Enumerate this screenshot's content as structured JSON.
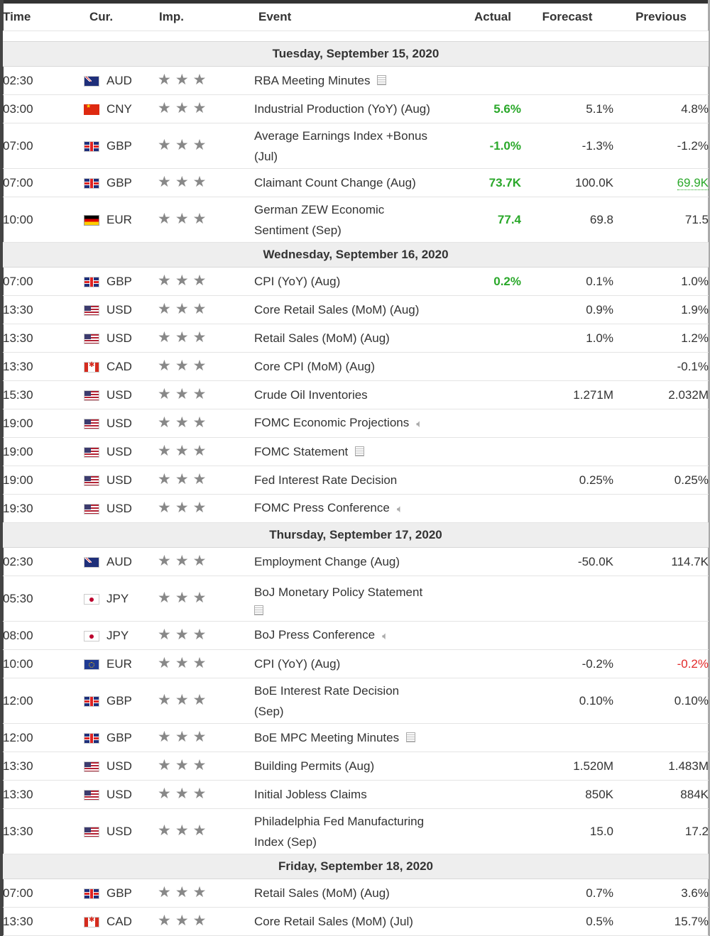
{
  "header": {
    "time": "Time",
    "currency": "Cur.",
    "importance": "Imp.",
    "event": "Event",
    "actual": "Actual",
    "forecast": "Forecast",
    "previous": "Previous"
  },
  "colors": {
    "positive": "#2aa82a",
    "negative": "#e22a2a",
    "day_header_bg": "#eeeeee",
    "star": "#888888"
  },
  "days": [
    {
      "label": "Tuesday, September 15, 2020",
      "events": [
        {
          "time": "02:30",
          "flag": "au",
          "currency": "AUD",
          "importance": 3,
          "event": "RBA Meeting Minutes",
          "icon": "document-icon",
          "actual": "",
          "actual_color": "",
          "forecast": "",
          "previous": "",
          "previous_color": ""
        },
        {
          "time": "03:00",
          "flag": "cn",
          "currency": "CNY",
          "importance": 3,
          "event": "Industrial Production (YoY) (Aug)",
          "icon": "",
          "actual": "5.6%",
          "actual_color": "green",
          "forecast": "5.1%",
          "previous": "4.8%",
          "previous_color": ""
        },
        {
          "time": "07:00",
          "flag": "gb",
          "currency": "GBP",
          "importance": 3,
          "event": "Average Earnings Index +Bonus (Jul)",
          "icon": "",
          "actual": "-1.0%",
          "actual_color": "green",
          "forecast": "-1.3%",
          "previous": "-1.2%",
          "previous_color": ""
        },
        {
          "time": "07:00",
          "flag": "gb",
          "currency": "GBP",
          "importance": 3,
          "event": "Claimant Count Change (Aug)",
          "icon": "",
          "actual": "73.7K",
          "actual_color": "green",
          "forecast": "100.0K",
          "previous": "69.9K",
          "previous_color": "green"
        },
        {
          "time": "10:00",
          "flag": "de",
          "currency": "EUR",
          "importance": 3,
          "event": "German ZEW Economic Sentiment (Sep)",
          "icon": "",
          "actual": "77.4",
          "actual_color": "green",
          "forecast": "69.8",
          "previous": "71.5",
          "previous_color": ""
        }
      ]
    },
    {
      "label": "Wednesday, September 16, 2020",
      "events": [
        {
          "time": "07:00",
          "flag": "gb",
          "currency": "GBP",
          "importance": 3,
          "event": "CPI (YoY) (Aug)",
          "icon": "",
          "actual": "0.2%",
          "actual_color": "green",
          "forecast": "0.1%",
          "previous": "1.0%",
          "previous_color": ""
        },
        {
          "time": "13:30",
          "flag": "us",
          "currency": "USD",
          "importance": 3,
          "event": "Core Retail Sales (MoM) (Aug)",
          "icon": "",
          "actual": "",
          "actual_color": "",
          "forecast": "0.9%",
          "previous": "1.9%",
          "previous_color": ""
        },
        {
          "time": "13:30",
          "flag": "us",
          "currency": "USD",
          "importance": 3,
          "event": "Retail Sales (MoM) (Aug)",
          "icon": "",
          "actual": "",
          "actual_color": "",
          "forecast": "1.0%",
          "previous": "1.2%",
          "previous_color": ""
        },
        {
          "time": "13:30",
          "flag": "ca",
          "currency": "CAD",
          "importance": 3,
          "event": "Core CPI (MoM) (Aug)",
          "icon": "",
          "actual": "",
          "actual_color": "",
          "forecast": "",
          "previous": "-0.1%",
          "previous_color": ""
        },
        {
          "time": "15:30",
          "flag": "us",
          "currency": "USD",
          "importance": 3,
          "event": "Crude Oil Inventories",
          "icon": "",
          "actual": "",
          "actual_color": "",
          "forecast": "1.271M",
          "previous": "2.032M",
          "previous_color": ""
        },
        {
          "time": "19:00",
          "flag": "us",
          "currency": "USD",
          "importance": 3,
          "event": "FOMC Economic Projections",
          "icon": "speaker-icon",
          "actual": "",
          "actual_color": "",
          "forecast": "",
          "previous": "",
          "previous_color": ""
        },
        {
          "time": "19:00",
          "flag": "us",
          "currency": "USD",
          "importance": 3,
          "event": "FOMC Statement",
          "icon": "document-icon",
          "actual": "",
          "actual_color": "",
          "forecast": "",
          "previous": "",
          "previous_color": ""
        },
        {
          "time": "19:00",
          "flag": "us",
          "currency": "USD",
          "importance": 3,
          "event": "Fed Interest Rate Decision",
          "icon": "",
          "actual": "",
          "actual_color": "",
          "forecast": "0.25%",
          "previous": "0.25%",
          "previous_color": ""
        },
        {
          "time": "19:30",
          "flag": "us",
          "currency": "USD",
          "importance": 3,
          "event": "FOMC Press Conference",
          "icon": "speaker-icon",
          "actual": "",
          "actual_color": "",
          "forecast": "",
          "previous": "",
          "previous_color": ""
        }
      ]
    },
    {
      "label": "Thursday, September 17, 2020",
      "events": [
        {
          "time": "02:30",
          "flag": "au",
          "currency": "AUD",
          "importance": 3,
          "event": "Employment Change (Aug)",
          "icon": "",
          "actual": "",
          "actual_color": "",
          "forecast": "-50.0K",
          "previous": "114.7K",
          "previous_color": ""
        },
        {
          "time": "05:30",
          "flag": "jp",
          "currency": "JPY",
          "importance": 3,
          "event": "BoJ Monetary Policy Statement",
          "icon": "document-icon-block",
          "actual": "",
          "actual_color": "",
          "forecast": "",
          "previous": "",
          "previous_color": ""
        },
        {
          "time": "08:00",
          "flag": "jp",
          "currency": "JPY",
          "importance": 3,
          "event": "BoJ Press Conference",
          "icon": "speaker-icon",
          "actual": "",
          "actual_color": "",
          "forecast": "",
          "previous": "",
          "previous_color": ""
        },
        {
          "time": "10:00",
          "flag": "eu",
          "currency": "EUR",
          "importance": 3,
          "event": "CPI (YoY) (Aug)",
          "icon": "",
          "actual": "",
          "actual_color": "",
          "forecast": "-0.2%",
          "previous": "-0.2%",
          "previous_color": "red"
        },
        {
          "time": "12:00",
          "flag": "gb",
          "currency": "GBP",
          "importance": 3,
          "event": "BoE Interest Rate Decision (Sep)",
          "icon": "",
          "actual": "",
          "actual_color": "",
          "forecast": "0.10%",
          "previous": "0.10%",
          "previous_color": ""
        },
        {
          "time": "12:00",
          "flag": "gb",
          "currency": "GBP",
          "importance": 3,
          "event": "BoE MPC Meeting Minutes",
          "icon": "document-icon",
          "actual": "",
          "actual_color": "",
          "forecast": "",
          "previous": "",
          "previous_color": ""
        },
        {
          "time": "13:30",
          "flag": "us",
          "currency": "USD",
          "importance": 3,
          "event": "Building Permits (Aug)",
          "icon": "",
          "actual": "",
          "actual_color": "",
          "forecast": "1.520M",
          "previous": "1.483M",
          "previous_color": ""
        },
        {
          "time": "13:30",
          "flag": "us",
          "currency": "USD",
          "importance": 3,
          "event": "Initial Jobless Claims",
          "icon": "",
          "actual": "",
          "actual_color": "",
          "forecast": "850K",
          "previous": "884K",
          "previous_color": ""
        },
        {
          "time": "13:30",
          "flag": "us",
          "currency": "USD",
          "importance": 3,
          "event": "Philadelphia Fed Manufacturing Index (Sep)",
          "icon": "",
          "actual": "",
          "actual_color": "",
          "forecast": "15.0",
          "previous": "17.2",
          "previous_color": ""
        }
      ]
    },
    {
      "label": "Friday, September 18, 2020",
      "events": [
        {
          "time": "07:00",
          "flag": "gb",
          "currency": "GBP",
          "importance": 3,
          "event": "Retail Sales (MoM) (Aug)",
          "icon": "",
          "actual": "",
          "actual_color": "",
          "forecast": "0.7%",
          "previous": "3.6%",
          "previous_color": ""
        },
        {
          "time": "13:30",
          "flag": "ca",
          "currency": "CAD",
          "importance": 3,
          "event": "Core Retail Sales (MoM) (Jul)",
          "icon": "",
          "actual": "",
          "actual_color": "",
          "forecast": "0.5%",
          "previous": "15.7%",
          "previous_color": ""
        }
      ]
    }
  ]
}
